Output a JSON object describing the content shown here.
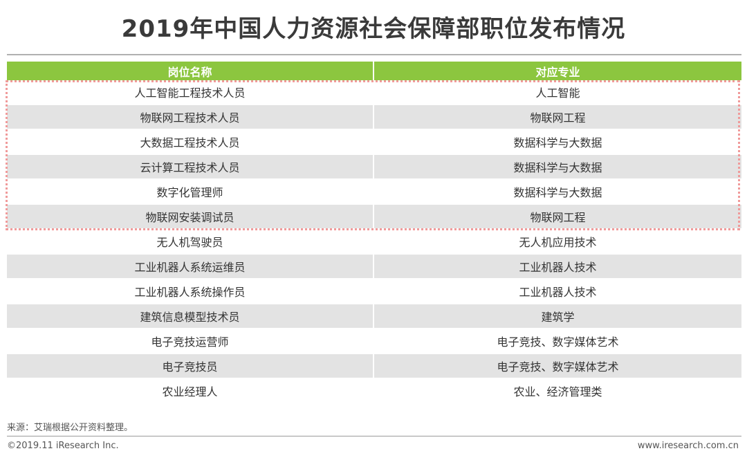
{
  "title": "2019年中国人力资源社会保障部职位发布情况",
  "table": {
    "headers": [
      "岗位名称",
      "对应专业"
    ],
    "rows": [
      {
        "position": "人工智能工程技术人员",
        "major": "人工智能"
      },
      {
        "position": "物联网工程技术人员",
        "major": "物联网工程"
      },
      {
        "position": "大数据工程技术人员",
        "major": "数据科学与大数据"
      },
      {
        "position": "云计算工程技术人员",
        "major": "数据科学与大数据"
      },
      {
        "position": "数字化管理师",
        "major": "数据科学与大数据"
      },
      {
        "position": "物联网安装调试员",
        "major": "物联网工程"
      },
      {
        "position": "无人机驾驶员",
        "major": "无人机应用技术"
      },
      {
        "position": "工业机器人系统运维员",
        "major": "工业机器人技术"
      },
      {
        "position": "工业机器人系统操作员",
        "major": "工业机器人技术"
      },
      {
        "position": "建筑信息模型技术员",
        "major": "建筑学"
      },
      {
        "position": "电子竞技运营师",
        "major": "电子竞技、数字媒体艺术"
      },
      {
        "position": "电子竞技员",
        "major": "电子竞技、数字媒体艺术"
      },
      {
        "position": "农业经理人",
        "major": "农业、经济管理类"
      }
    ],
    "highlighted_row_count": 6
  },
  "colors": {
    "header_bg": "#8cc63f",
    "shaded_row_bg": "#e3e3e3",
    "highlight_border": "#f09a9a"
  },
  "source": "来源：艾瑞根据公开资料整理。",
  "footer": {
    "copyright": "©2019.11 iResearch Inc.",
    "website": "www.iresearch.com.cn"
  }
}
